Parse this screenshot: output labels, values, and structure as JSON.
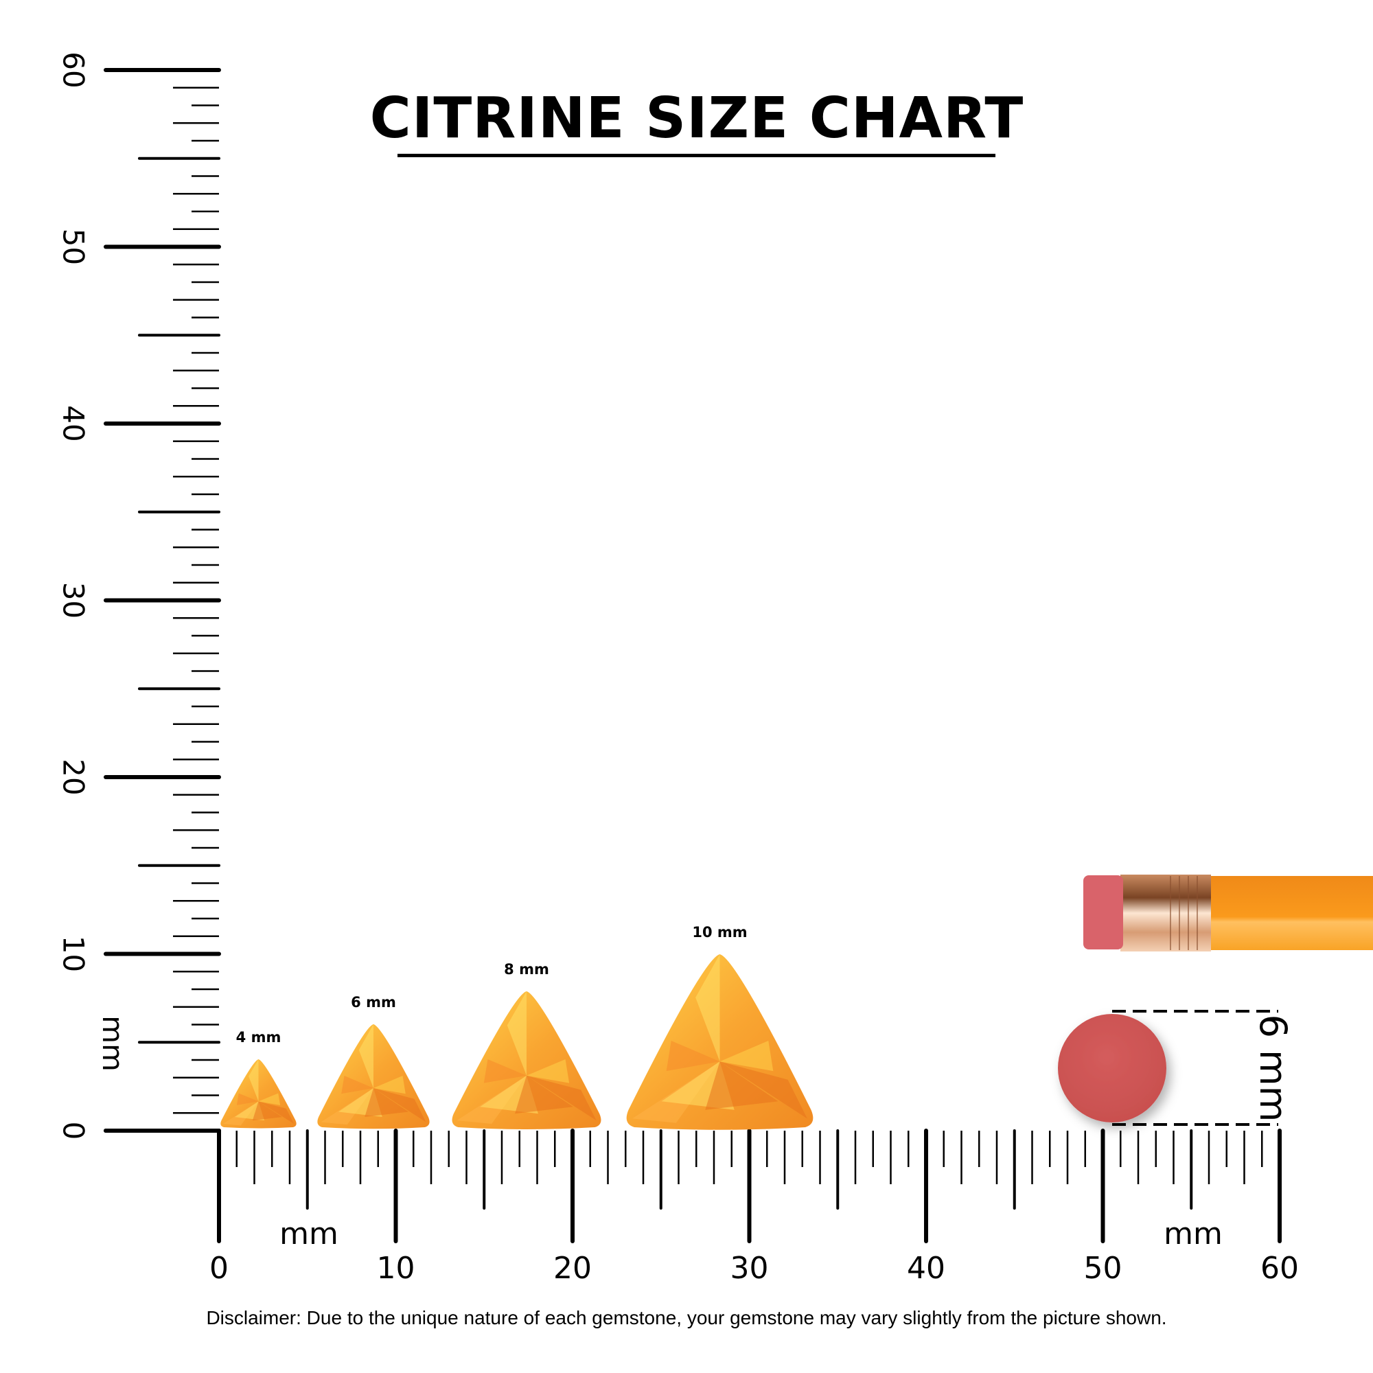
{
  "title": "CITRINE SIZE CHART",
  "disclaimer": "Disclaimer: Due to the unique nature of each gemstone, your gemstone may vary slightly from the picture shown.",
  "colors": {
    "gem_light": "#ffc83a",
    "gem_mid": "#f9a531",
    "gem_dark": "#e8731c",
    "eraser": "#d05a5a",
    "pencil_body": "#f7931e",
    "ferrule": "#d9a07a"
  },
  "chart_data": {
    "type": "scatter",
    "title": "CITRINE SIZE CHART",
    "xlabel": "mm",
    "ylabel": "mm",
    "xlim": [
      0,
      60
    ],
    "ylim": [
      0,
      60
    ],
    "x_ticks": [
      "0",
      "10",
      "20",
      "30",
      "40",
      "50",
      "60"
    ],
    "y_ticks": [
      "0",
      "10",
      "20",
      "30",
      "40",
      "50",
      "60"
    ],
    "gems": [
      {
        "label": "4 mm",
        "size": 4,
        "shape": "trillion"
      },
      {
        "label": "6 mm",
        "size": 6,
        "shape": "trillion"
      },
      {
        "label": "8 mm",
        "size": 8,
        "shape": "trillion"
      },
      {
        "label": "10 mm",
        "size": 10,
        "shape": "trillion"
      }
    ],
    "reference": {
      "object": "pencil eraser",
      "label": "6 mm",
      "size": 6,
      "xlabel": "mm"
    }
  }
}
